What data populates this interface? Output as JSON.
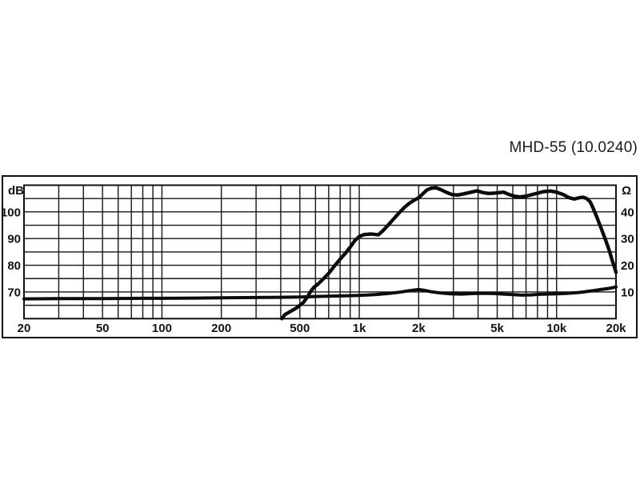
{
  "title": "MHD-55 (10.0240)",
  "colors": {
    "background": "#ffffff",
    "grid": "#161616",
    "border": "#111111",
    "curve": "#0b0b0b",
    "text": "#141414"
  },
  "chart_data": {
    "type": "line",
    "title": "MHD-55 (10.0240)",
    "grid": true,
    "legend": "none",
    "x_axis": {
      "scale": "log",
      "min": 20,
      "max": 20000,
      "unit": "Hz",
      "ticks": [
        {
          "f": 20,
          "label": "20"
        },
        {
          "f": 50,
          "label": "50"
        },
        {
          "f": 100,
          "label": "100"
        },
        {
          "f": 200,
          "label": "200"
        },
        {
          "f": 500,
          "label": "500"
        },
        {
          "f": 1000,
          "label": "1k"
        },
        {
          "f": 2000,
          "label": "2k"
        },
        {
          "f": 5000,
          "label": "5k"
        },
        {
          "f": 10000,
          "label": "10k"
        },
        {
          "f": 20000,
          "label": "20k"
        }
      ],
      "gridline_freqs": [
        20,
        30,
        40,
        50,
        60,
        70,
        80,
        90,
        100,
        200,
        300,
        400,
        500,
        600,
        700,
        800,
        900,
        1000,
        2000,
        3000,
        4000,
        5000,
        6000,
        7000,
        8000,
        9000,
        10000,
        20000
      ]
    },
    "y_axis_left": {
      "unit": "dB",
      "min": 60,
      "max": 110,
      "gridline_step": 5,
      "gridlines": [
        60,
        65,
        70,
        75,
        80,
        85,
        90,
        95,
        100,
        105,
        110
      ],
      "ticks": [
        {
          "v": 100,
          "label": "100"
        },
        {
          "v": 90,
          "label": "90"
        },
        {
          "v": 80,
          "label": "80"
        },
        {
          "v": 70,
          "label": "70"
        }
      ]
    },
    "y_axis_right": {
      "unit": "Ω",
      "min": 0,
      "max": 50,
      "ticks": [
        {
          "v": 40,
          "label": "40"
        },
        {
          "v": 30,
          "label": "30"
        },
        {
          "v": 20,
          "label": "20"
        },
        {
          "v": 10,
          "label": "10"
        }
      ]
    },
    "series": [
      {
        "name": "sound pressure level",
        "axis": "left",
        "unit": "dB",
        "points": [
          [
            405,
            60
          ],
          [
            420,
            61.5
          ],
          [
            450,
            62.8
          ],
          [
            480,
            64
          ],
          [
            500,
            65
          ],
          [
            520,
            66
          ],
          [
            545,
            68
          ],
          [
            565,
            70
          ],
          [
            590,
            71.8
          ],
          [
            615,
            72.8
          ],
          [
            650,
            74.5
          ],
          [
            700,
            77
          ],
          [
            750,
            79.8
          ],
          [
            800,
            82.3
          ],
          [
            850,
            84.5
          ],
          [
            900,
            86.8
          ],
          [
            950,
            89.3
          ],
          [
            1000,
            90.8
          ],
          [
            1060,
            91.5
          ],
          [
            1150,
            91.7
          ],
          [
            1250,
            91.4
          ],
          [
            1320,
            93
          ],
          [
            1400,
            95
          ],
          [
            1500,
            97.5
          ],
          [
            1600,
            99.8
          ],
          [
            1700,
            101.8
          ],
          [
            1800,
            103.3
          ],
          [
            1900,
            104.4
          ],
          [
            2000,
            105.3
          ],
          [
            2100,
            106.8
          ],
          [
            2200,
            108.2
          ],
          [
            2320,
            108.9
          ],
          [
            2450,
            109
          ],
          [
            2600,
            108.3
          ],
          [
            2750,
            107.4
          ],
          [
            2950,
            106.5
          ],
          [
            3150,
            106.3
          ],
          [
            3400,
            106.8
          ],
          [
            3700,
            107.4
          ],
          [
            3950,
            107.9
          ],
          [
            4200,
            107.3
          ],
          [
            4500,
            106.9
          ],
          [
            4800,
            107
          ],
          [
            5100,
            107.2
          ],
          [
            5400,
            107.4
          ],
          [
            5700,
            106.6
          ],
          [
            6100,
            105.9
          ],
          [
            6500,
            105.6
          ],
          [
            7000,
            105.9
          ],
          [
            7500,
            106.5
          ],
          [
            8000,
            107
          ],
          [
            8600,
            107.6
          ],
          [
            9300,
            107.8
          ],
          [
            10000,
            107.4
          ],
          [
            10800,
            106.5
          ],
          [
            11600,
            105.3
          ],
          [
            12300,
            104.8
          ],
          [
            13000,
            105.3
          ],
          [
            13600,
            105.5
          ],
          [
            14200,
            105
          ],
          [
            14800,
            103.8
          ],
          [
            15300,
            101.5
          ],
          [
            16000,
            98
          ],
          [
            16800,
            94
          ],
          [
            17600,
            90
          ],
          [
            18400,
            86
          ],
          [
            19200,
            81.5
          ],
          [
            19800,
            78.5
          ],
          [
            20000,
            77.3
          ]
        ]
      },
      {
        "name": "impedance",
        "axis": "right",
        "unit": "Ω",
        "points": [
          [
            20,
            7.4
          ],
          [
            30,
            7.5
          ],
          [
            50,
            7.5
          ],
          [
            80,
            7.6
          ],
          [
            100,
            7.6
          ],
          [
            150,
            7.7
          ],
          [
            200,
            7.8
          ],
          [
            300,
            7.9
          ],
          [
            400,
            8.0
          ],
          [
            500,
            8.1
          ],
          [
            600,
            8.3
          ],
          [
            700,
            8.4
          ],
          [
            800,
            8.5
          ],
          [
            900,
            8.6
          ],
          [
            1000,
            8.7
          ],
          [
            1200,
            9.0
          ],
          [
            1400,
            9.4
          ],
          [
            1600,
            9.9
          ],
          [
            1800,
            10.5
          ],
          [
            2000,
            10.9
          ],
          [
            2100,
            10.7
          ],
          [
            2300,
            10.1
          ],
          [
            2600,
            9.6
          ],
          [
            2900,
            9.3
          ],
          [
            3300,
            9.2
          ],
          [
            3800,
            9.4
          ],
          [
            4300,
            9.5
          ],
          [
            4800,
            9.4
          ],
          [
            5400,
            9.2
          ],
          [
            6000,
            9.0
          ],
          [
            6700,
            8.8
          ],
          [
            7400,
            8.9
          ],
          [
            8200,
            9.1
          ],
          [
            9000,
            9.2
          ],
          [
            10000,
            9.3
          ],
          [
            11000,
            9.4
          ],
          [
            12000,
            9.6
          ],
          [
            13000,
            9.8
          ],
          [
            14000,
            10.1
          ],
          [
            15000,
            10.4
          ],
          [
            16000,
            10.7
          ],
          [
            17000,
            11.0
          ],
          [
            18000,
            11.2
          ],
          [
            19000,
            11.5
          ],
          [
            20000,
            11.9
          ]
        ]
      }
    ]
  }
}
